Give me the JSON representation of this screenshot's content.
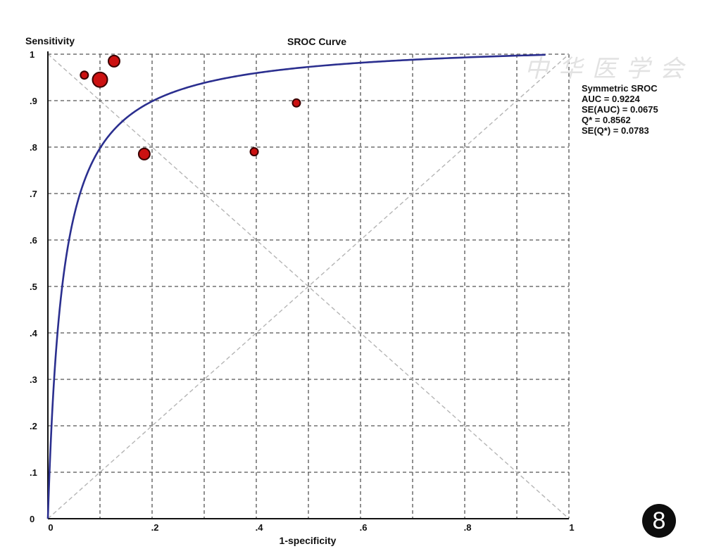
{
  "chart_data": {
    "type": "scatter",
    "title": "SROC Curve",
    "xlabel": "1-specificity",
    "ylabel": "Sensitivity",
    "xlim": [
      0,
      1
    ],
    "ylim": [
      0,
      1
    ],
    "x_ticks": [
      {
        "value": 0,
        "label": "0"
      },
      {
        "value": 0.2,
        "label": ".2"
      },
      {
        "value": 0.4,
        "label": ".4"
      },
      {
        "value": 0.6,
        "label": ".6"
      },
      {
        "value": 0.8,
        "label": ".8"
      },
      {
        "value": 1,
        "label": "1"
      }
    ],
    "y_ticks": [
      {
        "value": 0,
        "label": "0"
      },
      {
        "value": 0.1,
        "label": ".1"
      },
      {
        "value": 0.2,
        "label": ".2"
      },
      {
        "value": 0.3,
        "label": ".3"
      },
      {
        "value": 0.4,
        "label": ".4"
      },
      {
        "value": 0.5,
        "label": ".5"
      },
      {
        "value": 0.6,
        "label": ".6"
      },
      {
        "value": 0.7,
        "label": ".7"
      },
      {
        "value": 0.8,
        "label": ".8"
      },
      {
        "value": 0.9,
        "label": ".9"
      },
      {
        "value": 1,
        "label": "1"
      }
    ],
    "grid": true,
    "grid_minor_x_step": 0.1,
    "grid_y_step": 0.1,
    "reference_lines": [
      "diagonal",
      "anti-diagonal"
    ],
    "curve": {
      "type": "symmetric SROC",
      "auc": 0.9224,
      "q_star": 0.8562,
      "color": "#2b2f8f"
    },
    "points": [
      {
        "x": 0.07,
        "y": 0.955,
        "size": "small"
      },
      {
        "x": 0.1,
        "y": 0.945,
        "size": "large"
      },
      {
        "x": 0.127,
        "y": 0.985,
        "size": "medium"
      },
      {
        "x": 0.185,
        "y": 0.785,
        "size": "medium"
      },
      {
        "x": 0.396,
        "y": 0.79,
        "size": "small"
      },
      {
        "x": 0.477,
        "y": 0.895,
        "size": "small"
      }
    ],
    "point_color": "#cc1111",
    "annotation": {
      "title": "Symmetric SROC",
      "lines": [
        "AUC = 0.9224",
        "SE(AUC) = 0.0675",
        "Q* = 0.8562",
        "SE(Q*) = 0.0783"
      ],
      "placement": "right"
    }
  },
  "panel_label": "8",
  "watermark_text": "中华医学会"
}
